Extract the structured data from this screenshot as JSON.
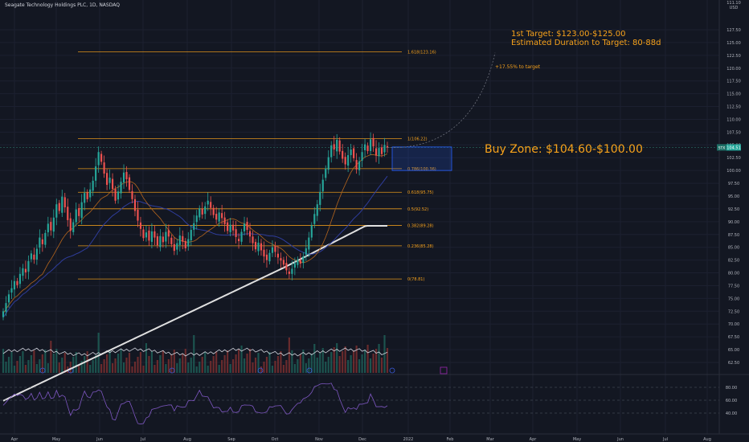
{
  "header": {
    "symbol_line": "Seagate Technology Holdings PLC, 1D, NASDAQ"
  },
  "annotations": {
    "target_line1": "1st Target: $123.00-$125.00",
    "target_line2": "Estimated Duration to Target: 80-88d",
    "percent_to_target": "+17.55% to target",
    "buy_zone": "Buy Zone: $104.60-$100.00"
  },
  "price_tag": {
    "symbol": "STX",
    "value": "104.51"
  },
  "colors": {
    "up": "#26a69a",
    "down": "#ef5350",
    "fib": "#f7a21b",
    "sma200": "#e0e0e0",
    "ma_blue": "#2f3d9c",
    "ma_orange": "#b5651d",
    "rsi": "#7e57c2",
    "buy_zone": "#2962ff"
  },
  "chart_data": {
    "type": "candlestick",
    "price_axis": {
      "ticks": [
        "127.50",
        "125.00",
        "122.50",
        "120.00",
        "117.50",
        "115.00",
        "112.50",
        "110.00",
        "107.50",
        "105.00",
        "102.50",
        "100.00",
        "97.50",
        "95.00",
        "92.50",
        "90.00",
        "87.50",
        "85.00",
        "82.50",
        "80.00",
        "77.50",
        "75.00",
        "72.50",
        "70.00",
        "67.50",
        "65.00",
        "62.50"
      ],
      "top_label": "111.10",
      "top_sub": "USD"
    },
    "time_axis": [
      "Apr",
      "May",
      "Jun",
      "Jul",
      "Aug",
      "Sep",
      "Oct",
      "Nov",
      "Dec",
      "2022",
      "Feb",
      "Mar",
      "Apr",
      "May",
      "Jun",
      "Jul",
      "Aug"
    ],
    "fib_levels": [
      {
        "label": "1.618(123.16)",
        "value": 123.16
      },
      {
        "label": "1(106.22)",
        "value": 106.22
      },
      {
        "label": "0.786(100.36)",
        "value": 100.36
      },
      {
        "label": "0.618(95.75)",
        "value": 95.75
      },
      {
        "label": "0.5(92.52)",
        "value": 92.52
      },
      {
        "label": "0.382(89.28)",
        "value": 89.28
      },
      {
        "label": "0.236(85.28)",
        "value": 85.28
      },
      {
        "label": "0(78.81)",
        "value": 78.81
      }
    ],
    "buy_zone": [
      100.0,
      104.6
    ],
    "last_price": 104.51,
    "closes": [
      72.5,
      74.1,
      75.8,
      77.0,
      78.4,
      77.6,
      79.8,
      80.9,
      80.1,
      82.3,
      83.8,
      82.6,
      84.7,
      86.9,
      85.6,
      87.8,
      89.6,
      88.3,
      90.8,
      93.4,
      92.1,
      94.9,
      92.8,
      90.3,
      88.2,
      89.9,
      92.4,
      91.1,
      93.8,
      95.6,
      94.4,
      96.3,
      98.0,
      100.8,
      103.6,
      101.7,
      99.4,
      97.2,
      98.6,
      96.4,
      94.1,
      95.9,
      97.8,
      99.6,
      98.3,
      96.2,
      94.4,
      92.1,
      90.2,
      88.6,
      86.8,
      87.9,
      86.3,
      88.1,
      86.9,
      85.4,
      87.2,
      86.0,
      88.0,
      87.1,
      85.6,
      84.3,
      85.8,
      87.3,
      86.1,
      84.8,
      86.6,
      88.4,
      89.7,
      91.2,
      92.6,
      91.4,
      93.0,
      94.1,
      92.7,
      91.3,
      90.4,
      91.8,
      90.7,
      89.5,
      88.2,
      89.4,
      88.3,
      87.0,
      86.2,
      88.0,
      89.6,
      88.4,
      87.1,
      85.8,
      84.6,
      85.9,
      84.4,
      83.2,
      82.5,
      83.9,
      85.0,
      84.1,
      83.0,
      82.4,
      81.6,
      80.5,
      79.8,
      80.8,
      81.9,
      82.6,
      81.8,
      83.2,
      84.8,
      86.9,
      89.3,
      91.5,
      93.4,
      95.8,
      98.2,
      100.4,
      102.6,
      104.9,
      104.1,
      106.0,
      103.7,
      102.3,
      101.2,
      103.0,
      104.1,
      102.4,
      100.2,
      101.8,
      103.6,
      105.1,
      103.8,
      106.1,
      104.7,
      102.9,
      104.4,
      103.2,
      105.0,
      104.51
    ],
    "rsi_axis": [
      "80.00",
      "60.00",
      "40.00"
    ]
  }
}
